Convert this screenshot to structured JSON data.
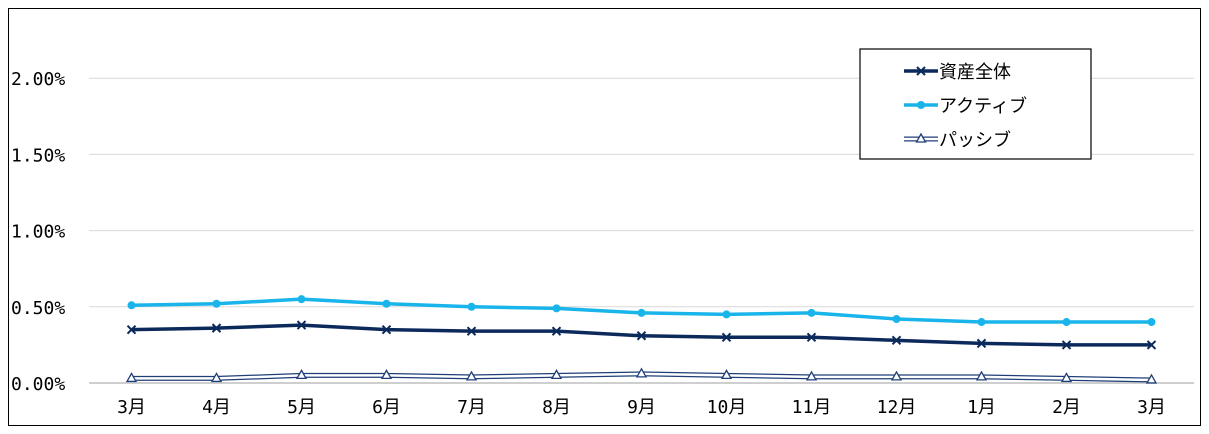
{
  "chart_data": {
    "type": "line",
    "title": "",
    "xlabel": "",
    "ylabel": "",
    "categories": [
      "3月",
      "4月",
      "5月",
      "6月",
      "7月",
      "8月",
      "9月",
      "10月",
      "11月",
      "12月",
      "1月",
      "2月",
      "3月"
    ],
    "y_ticks": [
      "0.00%",
      "0.50%",
      "1.00%",
      "1.50%",
      "2.00%"
    ],
    "ylim": [
      0,
      0.025
    ],
    "grid": true,
    "legend_position": "top-right",
    "series": [
      {
        "name": "資産全体",
        "color": "#0b2a5b",
        "marker": "x",
        "values": [
          0.0035,
          0.0036,
          0.0038,
          0.0035,
          0.0034,
          0.0034,
          0.0031,
          0.003,
          0.003,
          0.0028,
          0.0026,
          0.0025,
          0.0025
        ]
      },
      {
        "name": "アクティブ",
        "color": "#19b4ea",
        "marker": "circle",
        "values": [
          0.0051,
          0.0052,
          0.0055,
          0.0052,
          0.005,
          0.0049,
          0.0046,
          0.0045,
          0.0046,
          0.0042,
          0.004,
          0.004,
          0.004
        ]
      },
      {
        "name": "パッシブ",
        "color": "#1f3e78",
        "marker": "triangle",
        "values": [
          0.0003,
          0.0003,
          0.0005,
          0.0005,
          0.0004,
          0.0005,
          0.0006,
          0.0005,
          0.0004,
          0.0004,
          0.0004,
          0.0003,
          0.0002
        ]
      }
    ]
  }
}
